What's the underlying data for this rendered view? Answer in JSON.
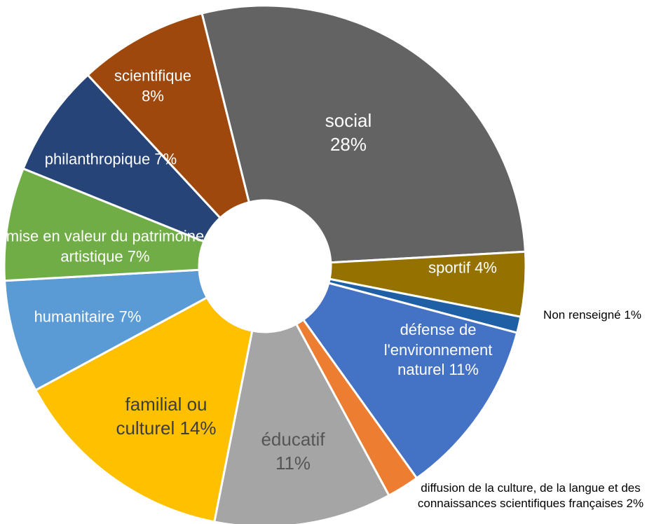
{
  "chart_data": {
    "type": "donut",
    "categories": [
      "social",
      "sportif",
      "Non renseigné",
      "défense de l'environnement naturel",
      "diffusion de la culture, de la langue et des connaissances scientifiques françaises",
      "éducatif",
      "familial ou culturel",
      "humanitaire",
      "mise en valeur du patrimoine artistique",
      "philanthropique",
      "scientifique"
    ],
    "values": [
      28,
      4,
      1,
      11,
      2,
      11,
      14,
      7,
      7,
      7,
      8
    ],
    "value_labels": [
      "28%",
      "4%",
      "1%",
      "11%",
      "2%",
      "11%",
      "14%",
      "7%",
      "7%",
      "7%",
      "8%"
    ],
    "colors": [
      "#636363",
      "#957200",
      "#1f5fa6",
      "#4472c4",
      "#ed7d31",
      "#a5a5a5",
      "#ffc000",
      "#5b9bd5",
      "#70ad47",
      "#264478",
      "#9e480e"
    ]
  }
}
